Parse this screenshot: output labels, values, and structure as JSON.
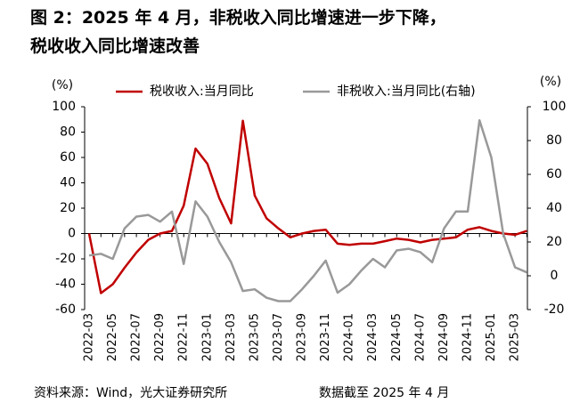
{
  "chart_data": {
    "type": "line",
    "title": "图 2：2025 年 4 月，非税收入同比增速进一步下降，税收收入同比增速改善",
    "y_label": "(%)",
    "y2_label": "(%)",
    "categories": [
      "2022-03",
      null,
      "2022-05",
      null,
      "2022-07",
      null,
      "2022-09",
      null,
      "2022-11",
      null,
      "2023-01",
      null,
      "2023-03",
      null,
      "2023-05",
      null,
      "2023-07",
      null,
      "2023-09",
      null,
      "2023-11",
      null,
      "2024-01",
      null,
      "2024-03",
      null,
      "2024-05",
      null,
      "2024-07",
      null,
      "2024-09",
      null,
      "2024-11",
      null,
      "2025-01",
      null,
      "2025-03",
      null
    ],
    "series": [
      {
        "name": "税收收入:当月同比",
        "color": "#c00000",
        "axis": "y",
        "values": [
          0,
          -47,
          -40,
          -27,
          -15,
          -5,
          0,
          2,
          22,
          67,
          55,
          28,
          8,
          89,
          30,
          12,
          4,
          -3,
          0,
          2,
          3,
          -8,
          -9,
          -8,
          -8,
          -6,
          -4,
          -5,
          -7,
          -5,
          -4,
          -3,
          3,
          5,
          2,
          0,
          -1,
          2
        ]
      },
      {
        "name": "非税收入:当月同比(右轴)",
        "color": "#999999",
        "axis": "y2",
        "values": [
          12,
          13,
          10,
          28,
          35,
          36,
          32,
          38,
          7,
          44,
          35,
          20,
          8,
          -9,
          -8,
          -13,
          -15,
          -15,
          -8,
          0,
          9,
          -10,
          -5,
          3,
          10,
          5,
          15,
          16,
          14,
          8,
          28,
          38,
          38,
          92,
          70,
          25,
          5,
          2
        ]
      }
    ],
    "ylim": [
      -60,
      100
    ],
    "yticks": [
      -60,
      -40,
      -20,
      0,
      20,
      40,
      60,
      80,
      100
    ],
    "y2lim": [
      -20,
      100
    ],
    "y2ticks": [
      -20,
      0,
      20,
      40,
      60,
      80,
      100
    ],
    "source": "资料来源：Wind，光大证券研究所",
    "note": "数据截至 2025 年 4 月"
  }
}
